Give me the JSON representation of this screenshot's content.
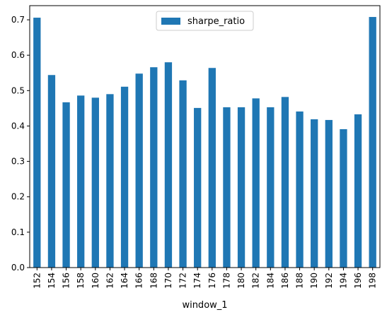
{
  "chart_data": {
    "type": "bar",
    "title": "",
    "xlabel": "window_1",
    "ylabel": "",
    "ylim": [
      0,
      0.74
    ],
    "yticks": [
      0.0,
      0.1,
      0.2,
      0.3,
      0.4,
      0.5,
      0.6,
      0.7
    ],
    "ytick_labels": [
      "0.0",
      "0.1",
      "0.2",
      "0.3",
      "0.4",
      "0.5",
      "0.6",
      "0.7"
    ],
    "grid": false,
    "legend_position": "upper center",
    "categories": [
      "152",
      "154",
      "156",
      "158",
      "160",
      "162",
      "164",
      "166",
      "168",
      "170",
      "172",
      "174",
      "176",
      "178",
      "180",
      "182",
      "184",
      "186",
      "188",
      "190",
      "192",
      "194",
      "196",
      "198"
    ],
    "series": [
      {
        "name": "sharpe_ratio",
        "color": "#1f77b4",
        "values": [
          0.706,
          0.544,
          0.467,
          0.486,
          0.48,
          0.49,
          0.511,
          0.548,
          0.566,
          0.58,
          0.529,
          0.451,
          0.564,
          0.453,
          0.453,
          0.478,
          0.453,
          0.482,
          0.441,
          0.419,
          0.417,
          0.391,
          0.433,
          0.708
        ]
      }
    ]
  }
}
